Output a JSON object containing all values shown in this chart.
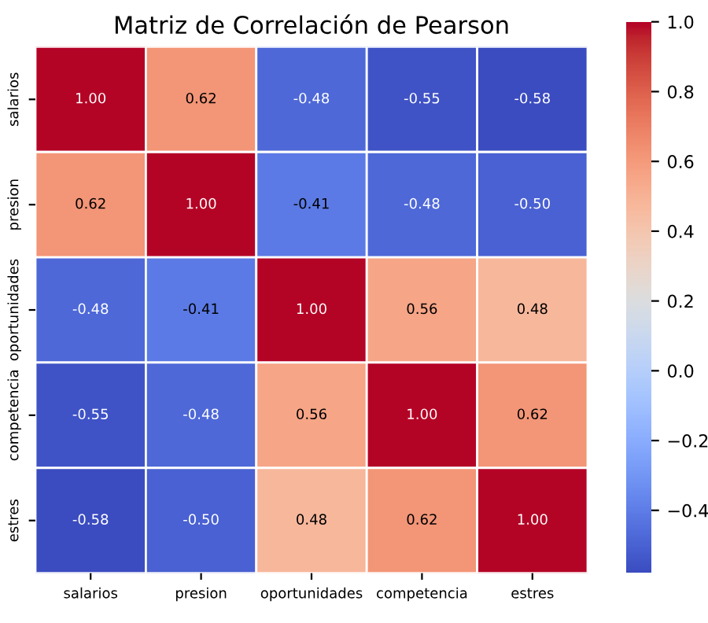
{
  "chart_data": {
    "type": "heatmap",
    "title": "Matriz de Correlación de Pearson",
    "categories": [
      "salarios",
      "presion",
      "oportunidades",
      "competencia",
      "estres"
    ],
    "y_categories": [
      "salarios",
      "presion",
      "oportunidades",
      "competencia",
      "estres"
    ],
    "cells": [
      [
        1.0,
        0.62,
        -0.48,
        -0.55,
        -0.58
      ],
      [
        0.62,
        1.0,
        -0.41,
        -0.48,
        -0.5
      ],
      [
        -0.48,
        -0.41,
        1.0,
        0.56,
        0.48
      ],
      [
        -0.55,
        -0.48,
        0.56,
        1.0,
        0.62
      ],
      [
        -0.58,
        -0.5,
        0.48,
        0.62,
        1.0
      ]
    ],
    "cell_labels": [
      [
        "1.00",
        "0.62",
        "-0.48",
        "-0.55",
        "-0.58"
      ],
      [
        "0.62",
        "1.00",
        "-0.41",
        "-0.48",
        "-0.50"
      ],
      [
        "-0.48",
        "-0.41",
        "1.00",
        "0.56",
        "0.48"
      ],
      [
        "-0.55",
        "-0.48",
        "0.56",
        "1.00",
        "0.62"
      ],
      [
        "-0.58",
        "-0.50",
        "0.48",
        "0.62",
        "1.00"
      ]
    ],
    "clim": [
      -0.58,
      1.0
    ],
    "cticks": [
      {
        "value": -0.4,
        "label": "−0.4"
      },
      {
        "value": -0.2,
        "label": "−0.2"
      },
      {
        "value": 0.0,
        "label": "0.0"
      },
      {
        "value": 0.2,
        "label": "0.2"
      },
      {
        "value": 0.4,
        "label": "0.4"
      },
      {
        "value": 0.6,
        "label": "0.6"
      },
      {
        "value": 0.8,
        "label": "0.8"
      },
      {
        "value": 1.0,
        "label": "1.0"
      }
    ]
  }
}
